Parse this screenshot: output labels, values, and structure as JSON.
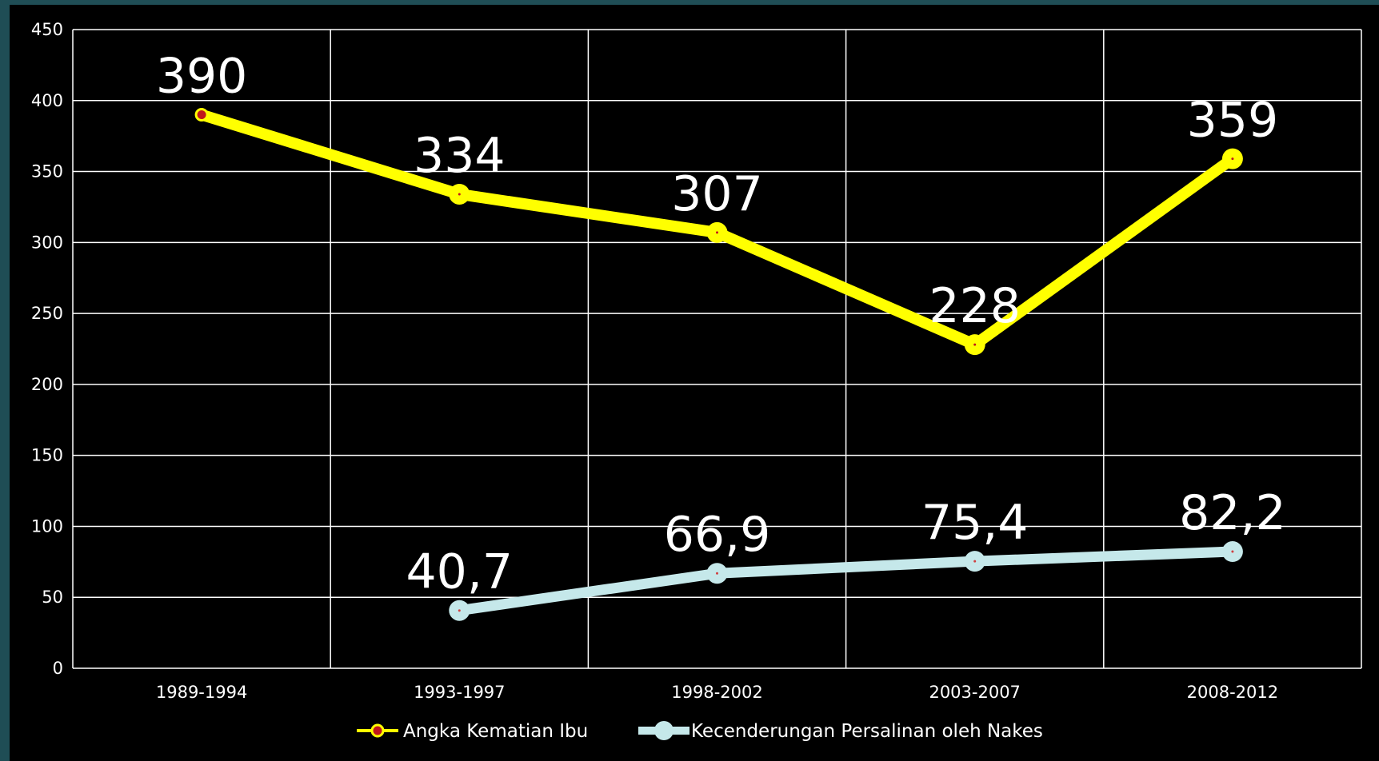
{
  "chart_data": {
    "type": "line",
    "categories": [
      "1989-1994",
      "1993-1997",
      "1998-2002",
      "2003-2007",
      "2008-2012"
    ],
    "ylim": [
      0,
      450
    ],
    "yticks": [
      0,
      50,
      100,
      150,
      200,
      250,
      300,
      350,
      400,
      450
    ],
    "grid": true,
    "legend_position": "bottom",
    "series": [
      {
        "name": "Angka Kematian Ibu",
        "values": [
          390,
          334,
          307,
          228,
          359
        ],
        "labels": [
          "390",
          "334",
          "307",
          "228",
          "359"
        ],
        "color": "#ffff00",
        "marker_color": "#c0161c"
      },
      {
        "name": "Kecenderungan Persalinan oleh Nakes",
        "values": [
          null,
          40.7,
          66.9,
          75.4,
          82.2
        ],
        "labels": [
          "",
          "40,7",
          "66,9",
          "75,4",
          "82,2"
        ],
        "color": "#c5e8ea",
        "marker_color": "#d04040"
      }
    ]
  },
  "colors": {
    "background": "#000000",
    "outer": "#1f4d55",
    "grid": "#ffffff",
    "text": "#ffffff"
  }
}
